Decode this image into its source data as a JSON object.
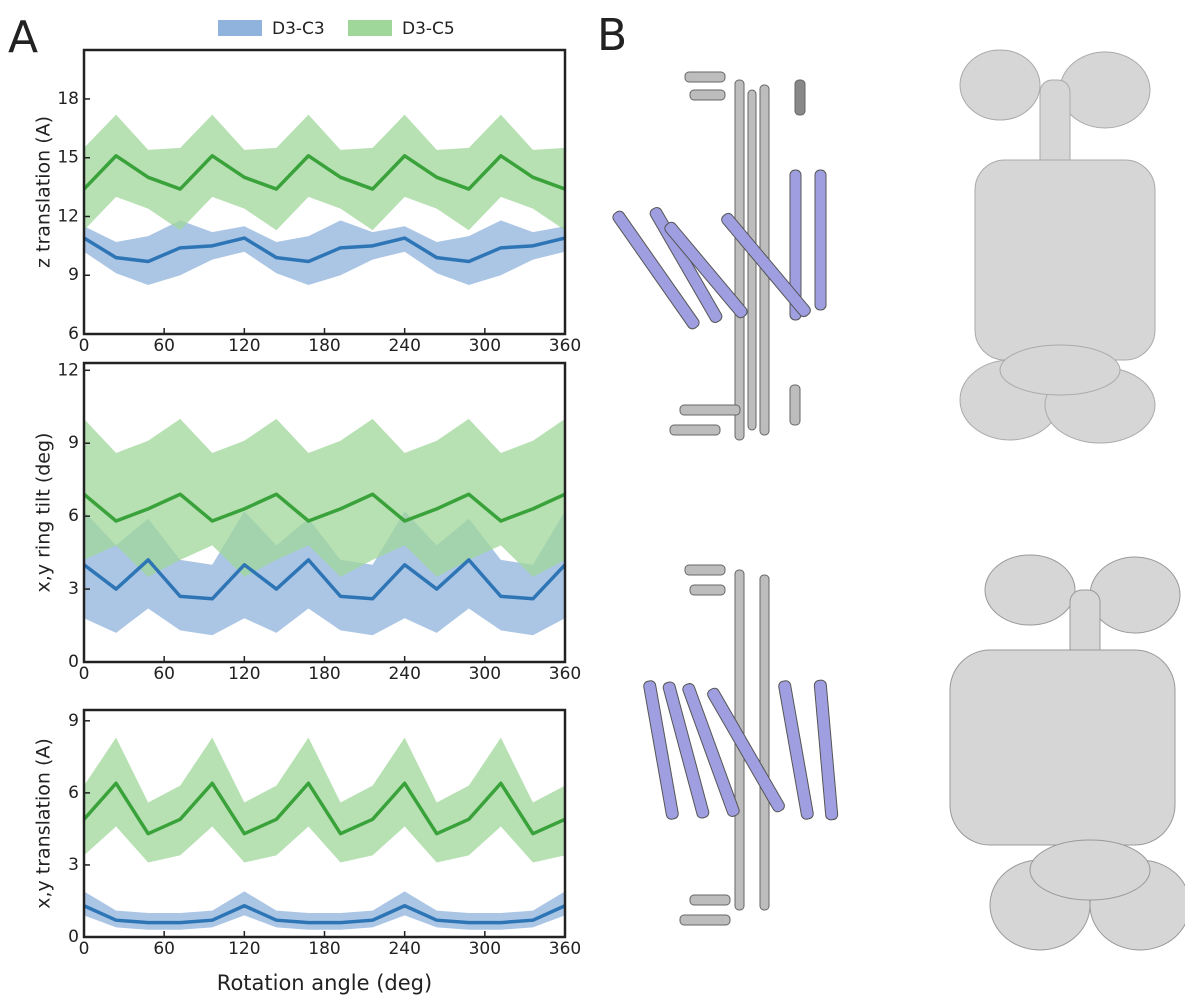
{
  "panel_labels": [
    "A",
    "B"
  ],
  "legend": [
    {
      "name": "D3-C3",
      "color": "#8fb3dc"
    },
    {
      "name": "D3-C5",
      "color": "#9fd79a"
    }
  ],
  "chart_data": [
    {
      "type": "line",
      "y_label": "z translation (A)",
      "x": [
        0,
        24,
        48,
        72,
        96,
        120,
        144,
        168,
        192,
        216,
        240,
        264,
        288,
        312,
        336,
        360
      ],
      "xlim": [
        0,
        360
      ],
      "xticks": [
        0,
        60,
        120,
        180,
        240,
        300,
        360
      ],
      "ylim": [
        6,
        20.5
      ],
      "yticks": [
        6,
        9,
        12,
        15,
        18
      ],
      "series": [
        {
          "color": "#2e75b6",
          "band_color": "#8fb3dc",
          "values": [
            10.9,
            9.9,
            9.7,
            10.4,
            10.5,
            10.9,
            9.9,
            9.7,
            10.4,
            10.5,
            10.9,
            9.9,
            9.7,
            10.4,
            10.5,
            10.9
          ],
          "upper": [
            11.5,
            10.7,
            11.0,
            11.8,
            11.2,
            11.5,
            10.7,
            11.0,
            11.8,
            11.2,
            11.5,
            10.7,
            11.0,
            11.8,
            11.2,
            11.5
          ],
          "lower": [
            10.2,
            9.1,
            8.5,
            9.0,
            9.8,
            10.2,
            9.1,
            8.5,
            9.0,
            9.8,
            10.2,
            9.1,
            8.5,
            9.0,
            9.8,
            10.2
          ]
        },
        {
          "color": "#3aa23a",
          "band_color": "#9fd79a",
          "values": [
            13.4,
            15.1,
            14.0,
            13.4,
            15.1,
            14.0,
            13.4,
            15.1,
            14.0,
            13.4,
            15.1,
            14.0,
            13.4,
            15.1,
            14.0,
            13.4
          ],
          "upper": [
            15.5,
            17.2,
            15.4,
            15.5,
            17.2,
            15.4,
            15.5,
            17.2,
            15.4,
            15.5,
            17.2,
            15.4,
            15.5,
            17.2,
            15.4,
            15.5
          ],
          "lower": [
            11.3,
            13.0,
            12.4,
            11.3,
            13.0,
            12.4,
            11.3,
            13.0,
            12.4,
            11.3,
            13.0,
            12.4,
            11.3,
            13.0,
            12.4,
            11.3
          ]
        }
      ]
    },
    {
      "type": "line",
      "y_label": "x,y ring tilt (deg)",
      "x": [
        0,
        24,
        48,
        72,
        96,
        120,
        144,
        168,
        192,
        216,
        240,
        264,
        288,
        312,
        336,
        360
      ],
      "xlim": [
        0,
        360
      ],
      "xticks": [
        0,
        60,
        120,
        180,
        240,
        300,
        360
      ],
      "ylim": [
        0,
        12.3
      ],
      "yticks": [
        0,
        3,
        6,
        9,
        12
      ],
      "series": [
        {
          "color": "#2e75b6",
          "band_color": "#8fb3dc",
          "values": [
            4.0,
            3.0,
            4.2,
            2.7,
            2.6,
            4.0,
            3.0,
            4.2,
            2.7,
            2.6,
            4.0,
            3.0,
            4.2,
            2.7,
            2.6,
            4.0
          ],
          "upper": [
            6.2,
            4.8,
            5.9,
            4.2,
            4.0,
            6.2,
            4.8,
            5.9,
            4.2,
            4.0,
            6.2,
            4.8,
            5.9,
            4.2,
            4.0,
            6.2
          ],
          "lower": [
            1.8,
            1.2,
            2.2,
            1.3,
            1.1,
            1.8,
            1.2,
            2.2,
            1.3,
            1.1,
            1.8,
            1.2,
            2.2,
            1.3,
            1.1,
            1.8
          ]
        },
        {
          "color": "#3aa23a",
          "band_color": "#9fd79a",
          "values": [
            6.9,
            5.8,
            6.3,
            6.9,
            5.8,
            6.3,
            6.9,
            5.8,
            6.3,
            6.9,
            5.8,
            6.3,
            6.9,
            5.8,
            6.3,
            6.9
          ],
          "upper": [
            10.0,
            8.6,
            9.1,
            10.0,
            8.6,
            9.1,
            10.0,
            8.6,
            9.1,
            10.0,
            8.6,
            9.1,
            10.0,
            8.6,
            9.1,
            10.0
          ],
          "lower": [
            4.2,
            4.8,
            3.5,
            4.2,
            4.8,
            3.5,
            4.2,
            4.8,
            3.5,
            4.2,
            4.8,
            3.5,
            4.2,
            4.8,
            3.5,
            4.2
          ]
        }
      ]
    },
    {
      "type": "line",
      "y_label": "x,y translation (A)",
      "x_label": "Rotation angle (deg)",
      "x": [
        0,
        24,
        48,
        72,
        96,
        120,
        144,
        168,
        192,
        216,
        240,
        264,
        288,
        312,
        336,
        360
      ],
      "xlim": [
        0,
        360
      ],
      "xticks": [
        0,
        60,
        120,
        180,
        240,
        300,
        360
      ],
      "ylim": [
        0,
        9.45
      ],
      "yticks": [
        0,
        3,
        6,
        9
      ],
      "series": [
        {
          "color": "#2e75b6",
          "band_color": "#8fb3dc",
          "values": [
            1.3,
            0.7,
            0.6,
            0.6,
            0.7,
            1.3,
            0.7,
            0.6,
            0.6,
            0.7,
            1.3,
            0.7,
            0.6,
            0.6,
            0.7,
            1.3
          ],
          "upper": [
            1.9,
            1.1,
            1.0,
            1.0,
            1.1,
            1.9,
            1.1,
            1.0,
            1.0,
            1.1,
            1.9,
            1.1,
            1.0,
            1.0,
            1.1,
            1.9
          ],
          "lower": [
            0.9,
            0.4,
            0.3,
            0.3,
            0.4,
            0.9,
            0.4,
            0.3,
            0.3,
            0.4,
            0.9,
            0.4,
            0.3,
            0.3,
            0.4,
            0.9
          ]
        },
        {
          "color": "#3aa23a",
          "band_color": "#9fd79a",
          "values": [
            4.9,
            6.4,
            4.3,
            4.9,
            6.4,
            4.3,
            4.9,
            6.4,
            4.3,
            4.9,
            6.4,
            4.3,
            4.9,
            6.4,
            4.3,
            4.9
          ],
          "upper": [
            6.3,
            8.3,
            5.6,
            6.3,
            8.3,
            5.6,
            6.3,
            8.3,
            5.6,
            6.3,
            8.3,
            5.6,
            6.3,
            8.3,
            5.6,
            6.3
          ],
          "lower": [
            3.4,
            4.6,
            3.1,
            3.4,
            4.6,
            3.1,
            3.4,
            4.6,
            3.1,
            3.4,
            4.6,
            3.1,
            3.4,
            4.6,
            3.1,
            3.4
          ]
        }
      ]
    }
  ]
}
